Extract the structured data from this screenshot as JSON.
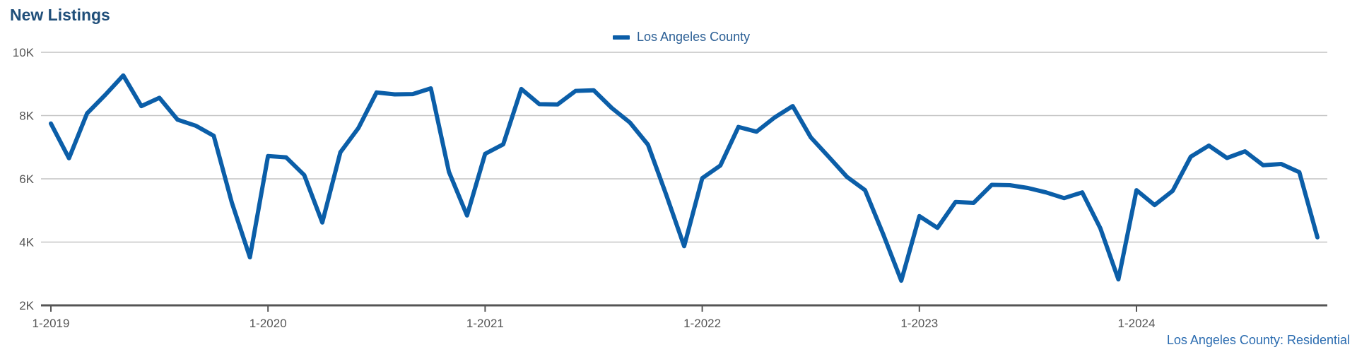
{
  "header": {
    "title": "New Listings"
  },
  "footer": {
    "source_label": "Los Angeles County: Residential"
  },
  "colors": {
    "series": "#0b5ea8",
    "grid": "#c4c4c4",
    "axis": "#555555",
    "title": "#1f4e79"
  },
  "chart_data": {
    "type": "line",
    "title": "New Listings",
    "xlabel": "",
    "ylabel": "",
    "ylim": [
      2000,
      10000
    ],
    "yticks": [
      {
        "value": 2000,
        "label": "2K"
      },
      {
        "value": 4000,
        "label": "4K"
      },
      {
        "value": 6000,
        "label": "6K"
      },
      {
        "value": 8000,
        "label": "8K"
      },
      {
        "value": 10000,
        "label": "10K"
      }
    ],
    "xticks": [
      {
        "index": 0,
        "label": "1-2019"
      },
      {
        "index": 12,
        "label": "1-2020"
      },
      {
        "index": 24,
        "label": "1-2021"
      },
      {
        "index": 36,
        "label": "1-2022"
      },
      {
        "index": 48,
        "label": "1-2023"
      },
      {
        "index": 60,
        "label": "1-2024"
      }
    ],
    "grid": true,
    "legend_position": "top-center",
    "series": [
      {
        "name": "Los Angeles County",
        "values": [
          7750,
          6650,
          8070,
          8650,
          9270,
          8300,
          8560,
          7870,
          7680,
          7360,
          5250,
          3520,
          6720,
          6680,
          6120,
          4620,
          6840,
          7610,
          8730,
          8670,
          8680,
          8860,
          6220,
          4840,
          6790,
          7090,
          8840,
          8360,
          8350,
          8780,
          8800,
          8240,
          7780,
          7080,
          5510,
          3870,
          6020,
          6420,
          7640,
          7490,
          7940,
          8300,
          7310,
          6690,
          6060,
          5640,
          4250,
          2780,
          4820,
          4450,
          5270,
          5240,
          5810,
          5800,
          5710,
          5570,
          5390,
          5570,
          4440,
          2820,
          5640,
          5170,
          5620,
          6700,
          7050,
          6660,
          6870,
          6430,
          6470,
          6210,
          4150
        ]
      }
    ]
  }
}
